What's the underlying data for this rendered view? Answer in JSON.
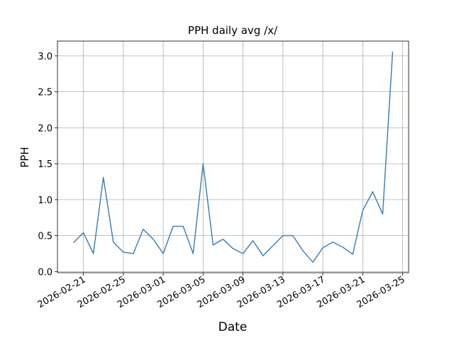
{
  "chart_data": {
    "type": "line",
    "title": "PPH daily avg /x/",
    "xlabel": "Date",
    "ylabel": "PPH",
    "x": [
      "2026-02-20",
      "2026-02-21",
      "2026-02-22",
      "2026-02-23",
      "2026-02-24",
      "2026-02-25",
      "2026-02-26",
      "2026-02-27",
      "2026-02-28",
      "2026-03-01",
      "2026-03-02",
      "2026-03-03",
      "2026-03-04",
      "2026-03-05",
      "2026-03-06",
      "2026-03-07",
      "2026-03-08",
      "2026-03-09",
      "2026-03-10",
      "2026-03-11",
      "2026-03-12",
      "2026-03-13",
      "2026-03-14",
      "2026-03-15",
      "2026-03-16",
      "2026-03-17",
      "2026-03-18",
      "2026-03-19",
      "2026-03-20",
      "2026-03-21",
      "2026-03-22",
      "2026-03-23",
      "2026-03-24"
    ],
    "values": [
      0.4,
      0.54,
      0.25,
      1.31,
      0.41,
      0.27,
      0.25,
      0.59,
      0.45,
      0.25,
      0.63,
      0.63,
      0.25,
      1.5,
      0.37,
      0.45,
      0.32,
      0.25,
      0.43,
      0.22,
      0.36,
      0.5,
      0.5,
      0.29,
      0.13,
      0.33,
      0.41,
      0.34,
      0.24,
      0.85,
      1.11,
      0.8,
      3.06
    ],
    "color": "#4682b4",
    "xlim": [
      "2026-02-18T09:36",
      "2026-03-25T14:24"
    ],
    "xticks": [
      "2026-02-21",
      "2026-02-25",
      "2026-03-01",
      "2026-03-05",
      "2026-03-09",
      "2026-03-13",
      "2026-03-17",
      "2026-03-21",
      "2026-03-25"
    ],
    "ylim": [
      -0.016,
      3.206
    ],
    "yticks": [
      {
        "value": 0,
        "label": "0.0"
      },
      {
        "value": 0.5,
        "label": "0.5"
      },
      {
        "value": 1,
        "label": "1.0"
      },
      {
        "value": 1.5,
        "label": "1.5"
      },
      {
        "value": 2,
        "label": "2.0"
      },
      {
        "value": 2.5,
        "label": "2.5"
      },
      {
        "value": 3,
        "label": "3.0"
      }
    ],
    "grid": true
  }
}
